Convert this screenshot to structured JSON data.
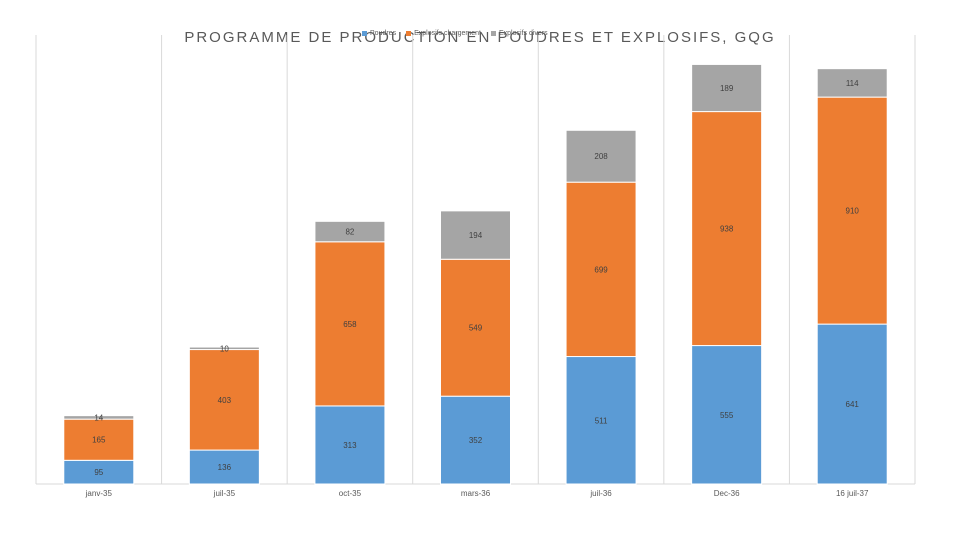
{
  "chart_data": {
    "type": "bar",
    "stacked": true,
    "title": "PROGRAMME DE PRODUCTION EN POUDRES ET EXPLOSIFS, GQG",
    "xlabel": "",
    "ylabel": "",
    "ylim": [
      0,
      1800
    ],
    "legend_position": "top",
    "categories": [
      "janv-35",
      "juil-35",
      "oct-35",
      "mars-36",
      "juil-36",
      "Dec-36",
      "16 juil-37"
    ],
    "series": [
      {
        "name": "Poudres",
        "color": "#5b9bd5",
        "values": [
          95,
          136,
          313,
          352,
          511,
          555,
          641
        ]
      },
      {
        "name": "Explosifs chargement",
        "color": "#ed7d31",
        "values": [
          165,
          403,
          658,
          549,
          699,
          938,
          910
        ]
      },
      {
        "name": "Explosifs divers",
        "color": "#a5a5a5",
        "values": [
          14,
          10,
          82,
          194,
          208,
          189,
          114
        ]
      }
    ],
    "series_label_text": [
      [
        "95",
        "136",
        "313",
        "352",
        "511",
        "555",
        "641"
      ],
      [
        "165",
        "403",
        "658",
        "549",
        "699",
        "938",
        "910"
      ],
      [
        "14",
        "10",
        "82",
        "194",
        "208",
        "189",
        "114"
      ]
    ]
  }
}
